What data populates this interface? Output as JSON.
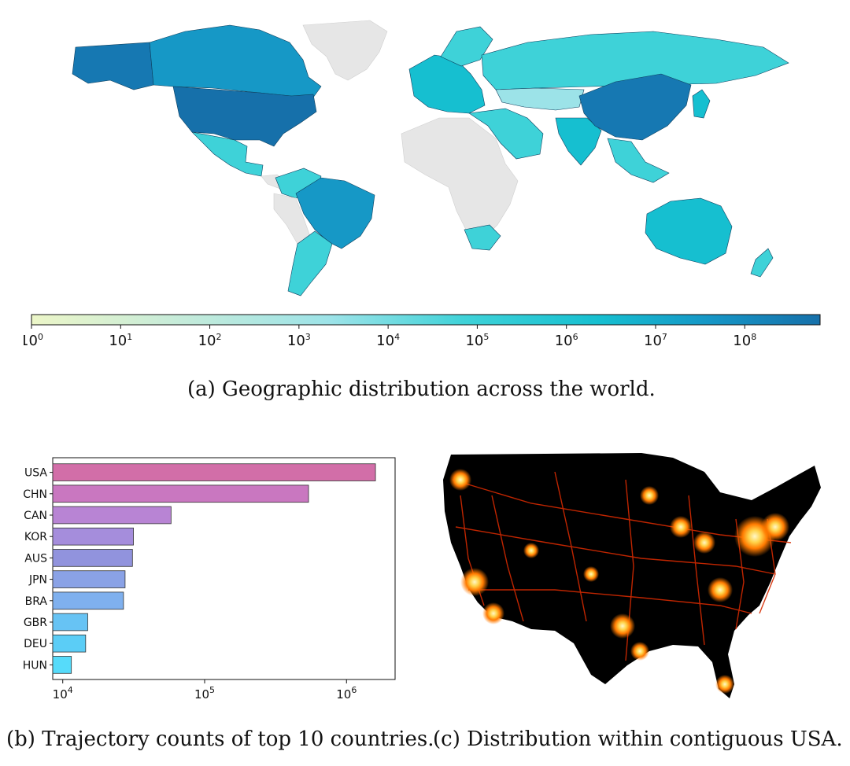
{
  "figure": {
    "caption_a": "(a)  Geographic distribution across the world.",
    "caption_b": "(b)  Trajectory counts of top 10 countries.",
    "caption_c": "(c)  Distribution within contiguous USA."
  },
  "colors": {
    "land_no_data": "#e6e6e6",
    "colormap": [
      "#ecf6c8",
      "#c9ecd8",
      "#9ce3e8",
      "#3ed2d8",
      "#16bfd0",
      "#1596c6",
      "#1670aa"
    ],
    "density_bg": "#000000",
    "density_hot": [
      "#7a0d00",
      "#d42a00",
      "#ff7a00",
      "#ffd34a",
      "#fff7c8"
    ]
  },
  "chart_data": [
    {
      "type": "heatmap",
      "subtype": "choropleth",
      "colorbar": {
        "scale": "log",
        "range": [
          1,
          700000000
        ],
        "tick_labels": [
          "10^0",
          "10^1",
          "10^2",
          "10^3",
          "10^4",
          "10^5",
          "10^6",
          "10^7",
          "10^8"
        ],
        "tick_values": [
          1,
          10,
          100,
          1000,
          10000,
          100000,
          1000000,
          10000000,
          100000000
        ]
      }
    },
    {
      "type": "bar",
      "orientation": "horizontal",
      "xscale": "log",
      "xlim": [
        8500,
        2200000
      ],
      "x_tick_labels": [
        "10^4",
        "10^5",
        "10^6"
      ],
      "x_tick_values": [
        10000,
        100000,
        1000000
      ],
      "categories": [
        "USA",
        "CHN",
        "CAN",
        "KOR",
        "AUS",
        "JPN",
        "BRA",
        "GBR",
        "DEU",
        "HUN"
      ],
      "values": [
        1600000,
        540000,
        58000,
        31500,
        31000,
        27500,
        26800,
        15000,
        14500,
        11500
      ],
      "bar_colors": [
        "#d26ea8",
        "#c977c0",
        "#b884d4",
        "#a58ddc",
        "#9193dd",
        "#8aa2e6",
        "#7fb0ee",
        "#67c3f4",
        "#5bcdf6",
        "#56dbfa"
      ]
    },
    {
      "type": "heatmap",
      "subtype": "density"
    }
  ]
}
